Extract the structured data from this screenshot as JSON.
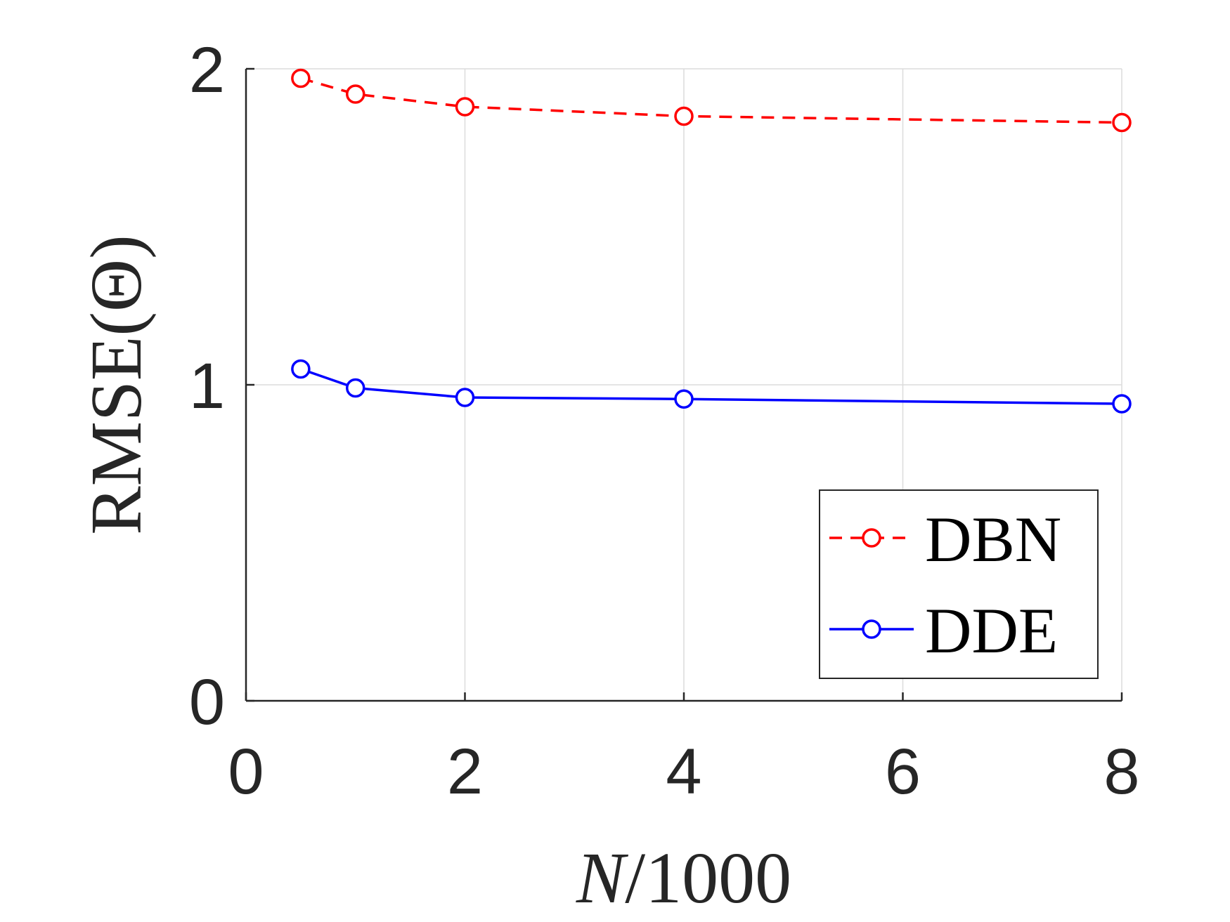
{
  "chart_data": {
    "type": "line",
    "xlabel_var": "N",
    "xlabel_rest": "/1000",
    "ylabel": "RMSE(Θ)",
    "xlim": [
      0,
      8
    ],
    "ylim": [
      0,
      2
    ],
    "xticks": [
      0,
      2,
      4,
      6,
      8
    ],
    "yticks": [
      0,
      1,
      2
    ],
    "grid": true,
    "legend_position": "bottom-right",
    "series": [
      {
        "name": "DBN",
        "color": "#ff0000",
        "line_style": "dashed",
        "marker": "circle",
        "x": [
          0.5,
          1,
          2,
          4,
          8
        ],
        "y": [
          1.97,
          1.92,
          1.88,
          1.85,
          1.83
        ]
      },
      {
        "name": "DDE",
        "color": "#0000ff",
        "line_style": "solid",
        "marker": "circle",
        "x": [
          0.5,
          1,
          2,
          4,
          8
        ],
        "y": [
          1.05,
          0.99,
          0.96,
          0.955,
          0.94
        ]
      }
    ]
  }
}
